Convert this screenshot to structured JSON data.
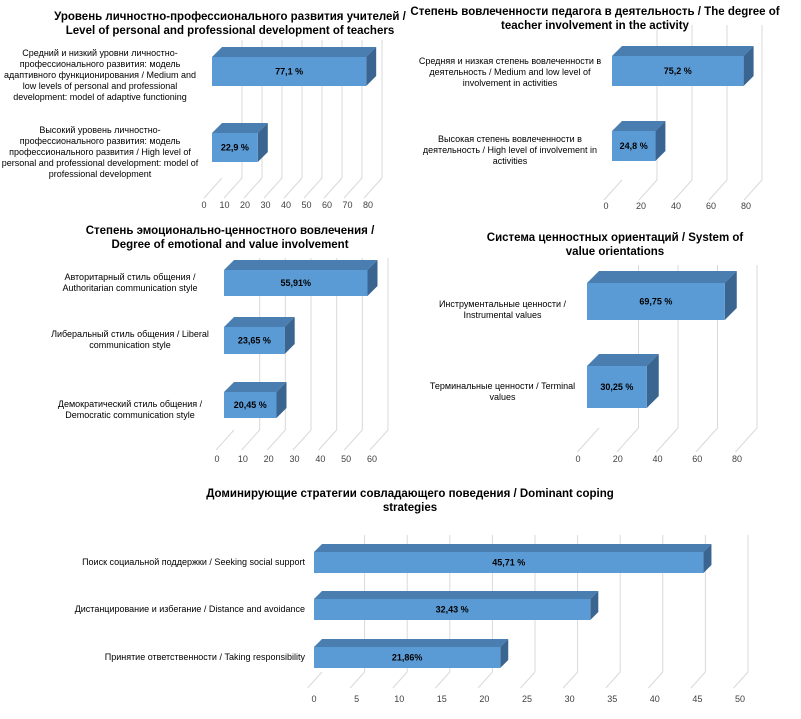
{
  "chart_data": [
    {
      "type": "bar",
      "orientation": "horizontal",
      "title": "Уровень личностно-профессионального развития учителей / Level of personal and professional development of teachers",
      "categories": [
        "Средний и низкий уровни личностно-профессионального развития: модель адаптивного функционирования / Medium and low levels of personal and professional development: model of adaptive functioning",
        "Высокий уровень личностно-профессионального развития: модель профессионального развития / High level of personal and professional development: model of professional development"
      ],
      "values": [
        77.1,
        22.9
      ],
      "data_labels": [
        "77,1 %",
        "22,9 %"
      ],
      "xlim": [
        0,
        80
      ],
      "ticks": [
        "0",
        "10",
        "20",
        "30",
        "40",
        "50",
        "60",
        "70",
        "80"
      ],
      "tick_values": [
        0,
        10,
        20,
        30,
        40,
        50,
        60,
        70,
        80
      ]
    },
    {
      "type": "bar",
      "orientation": "horizontal",
      "title": "Степень вовлеченности педагога в деятельность / The degree of teacher involvement in the activity",
      "categories": [
        "Средняя и низкая степень вовлеченности в деятельность / Medium and low level of involvement in activities",
        "Высокая степень вовлеченности в деятельность / High level of involvement in activities"
      ],
      "values": [
        75.2,
        24.8
      ],
      "data_labels": [
        "75,2 %",
        "24,8 %"
      ],
      "xlim": [
        0,
        80
      ],
      "ticks": [
        "0",
        "20",
        "40",
        "60",
        "80"
      ],
      "tick_values": [
        0,
        20,
        40,
        60,
        80
      ]
    },
    {
      "type": "bar",
      "orientation": "horizontal",
      "title": "Степень эмоционально-ценностного вовлечения / Degree of emotional and value involvement",
      "categories": [
        "Авторитарный стиль общения / Authoritarian communication style",
        "Либеральный стиль общения / Liberal communication style",
        "Демократический стиль общения / Democratic communication style"
      ],
      "values": [
        55.91,
        23.65,
        20.45
      ],
      "data_labels": [
        "55,91%",
        "23,65 %",
        "20,45 %"
      ],
      "xlim": [
        0,
        60
      ],
      "ticks": [
        "0",
        "10",
        "20",
        "30",
        "40",
        "50",
        "60"
      ],
      "tick_values": [
        0,
        10,
        20,
        30,
        40,
        50,
        60
      ]
    },
    {
      "type": "bar",
      "orientation": "horizontal",
      "title": "Система ценностных ориентаций / System of value orientations",
      "categories": [
        "Инструментальные ценности / Instrumental values",
        "Терминальные ценности / Terminal values"
      ],
      "values": [
        69.75,
        30.25
      ],
      "data_labels": [
        "69,75 %",
        "30,25 %"
      ],
      "xlim": [
        0,
        80
      ],
      "ticks": [
        "0",
        "20",
        "40",
        "60",
        "80"
      ],
      "tick_values": [
        0,
        20,
        40,
        60,
        80
      ]
    },
    {
      "type": "bar",
      "orientation": "horizontal",
      "title": "Доминирующие стратегии совладающего поведения / Dominant coping strategies",
      "categories": [
        "Поиск социальной поддержки / Seeking social support",
        "Дистанцирование и избегание / Distance and avoidance",
        "Принятие ответственности / Taking responsibility"
      ],
      "values": [
        45.71,
        32.43,
        21.86
      ],
      "data_labels": [
        "45,71 %",
        "32,43 %",
        "21,86%"
      ],
      "xlim": [
        0,
        50
      ],
      "ticks": [
        "0",
        "5",
        "10",
        "15",
        "20",
        "25",
        "30",
        "35",
        "40",
        "45",
        "50"
      ],
      "tick_values": [
        0,
        5,
        10,
        15,
        20,
        25,
        30,
        35,
        40,
        45,
        50
      ]
    }
  ],
  "colors": {
    "bar_front": "#5b9bd5",
    "bar_top": "#4a7eb0",
    "bar_side": "#3a6590",
    "grid": "#d9d9d9"
  }
}
